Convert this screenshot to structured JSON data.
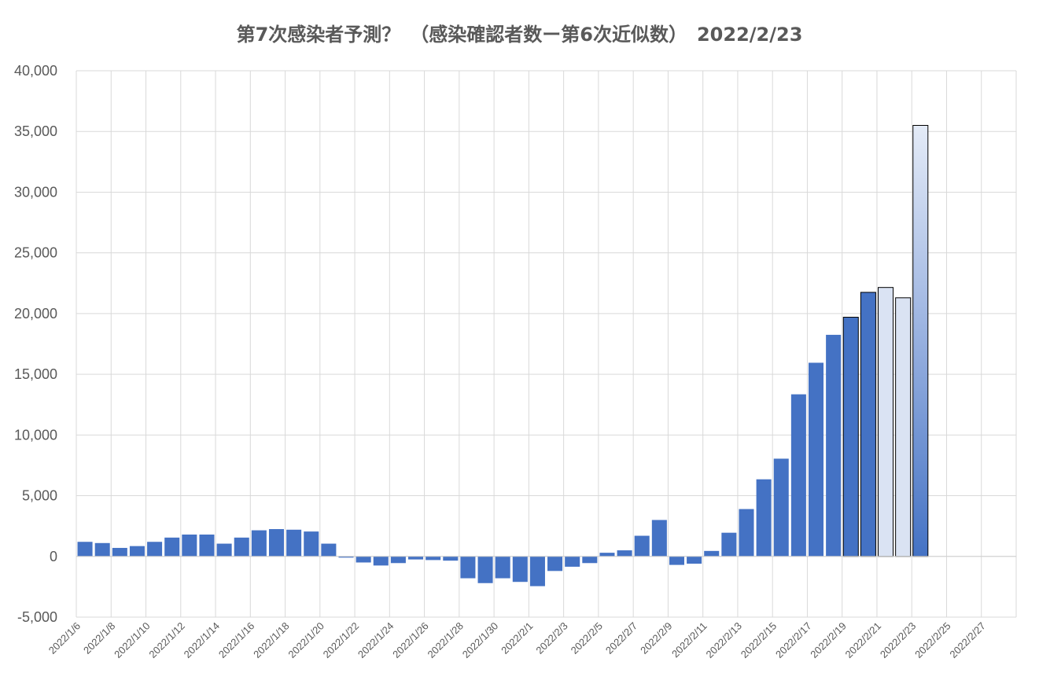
{
  "chart_data": {
    "type": "bar",
    "title": "第7次感染者予測？　（感染確認者数ー第6次近似数）　2022/2/23",
    "xlabel": "",
    "ylabel": "",
    "ylim": [
      -5000,
      40000
    ],
    "yticks": [
      -5000,
      0,
      5000,
      10000,
      15000,
      20000,
      25000,
      30000,
      35000,
      40000
    ],
    "ytick_labels": [
      "-5,000",
      "0",
      "5,000",
      "10,000",
      "15,000",
      "20,000",
      "25,000",
      "30,000",
      "35,000",
      "40,000"
    ],
    "grid": true,
    "legend": "none",
    "xtick_labels": [
      "2022/1/6",
      "2022/1/8",
      "2022/1/10",
      "2022/1/12",
      "2022/1/14",
      "2022/1/16",
      "2022/1/18",
      "2022/1/20",
      "2022/1/22",
      "2022/1/24",
      "2022/1/26",
      "2022/1/28",
      "2022/1/30",
      "2022/2/1",
      "2022/2/3",
      "2022/2/5",
      "2022/2/7",
      "2022/2/9",
      "2022/2/11",
      "2022/2/13",
      "2022/2/15",
      "2022/2/17",
      "2022/2/19",
      "2022/2/21",
      "2022/2/23",
      "2022/2/25",
      "2022/2/27"
    ],
    "categories": [
      "2022/1/6",
      "2022/1/7",
      "2022/1/8",
      "2022/1/9",
      "2022/1/10",
      "2022/1/11",
      "2022/1/12",
      "2022/1/13",
      "2022/1/14",
      "2022/1/15",
      "2022/1/16",
      "2022/1/17",
      "2022/1/18",
      "2022/1/19",
      "2022/1/20",
      "2022/1/21",
      "2022/1/22",
      "2022/1/23",
      "2022/1/24",
      "2022/1/25",
      "2022/1/26",
      "2022/1/27",
      "2022/1/28",
      "2022/1/29",
      "2022/1/30",
      "2022/1/31",
      "2022/2/1",
      "2022/2/2",
      "2022/2/3",
      "2022/2/4",
      "2022/2/5",
      "2022/2/6",
      "2022/2/7",
      "2022/2/8",
      "2022/2/9",
      "2022/2/10",
      "2022/2/11",
      "2022/2/12",
      "2022/2/13",
      "2022/2/14",
      "2022/2/15",
      "2022/2/16",
      "2022/2/17",
      "2022/2/18",
      "2022/2/19",
      "2022/2/20",
      "2022/2/21",
      "2022/2/22",
      "2022/2/23",
      "2022/2/24",
      "2022/2/25",
      "2022/2/26",
      "2022/2/27",
      "2022/2/28"
    ],
    "values": [
      1200,
      1100,
      700,
      850,
      1200,
      1550,
      1800,
      1800,
      1050,
      1550,
      2150,
      2250,
      2200,
      2050,
      1050,
      -100,
      -500,
      -750,
      -550,
      -250,
      -300,
      -350,
      -1800,
      -2200,
      -1800,
      -2100,
      -2450,
      -1200,
      -850,
      -550,
      300,
      500,
      1700,
      3000,
      -700,
      -600,
      450,
      1950,
      3900,
      6350,
      8050,
      13350,
      15950,
      18250,
      19700,
      21750,
      22150,
      21300,
      35500,
      null,
      null,
      null,
      null,
      null
    ],
    "bar_styles": [
      "solid",
      "solid",
      "solid",
      "solid",
      "solid",
      "solid",
      "solid",
      "solid",
      "solid",
      "solid",
      "solid",
      "solid",
      "solid",
      "solid",
      "solid",
      "solid",
      "solid",
      "solid",
      "solid",
      "solid",
      "solid",
      "solid",
      "solid",
      "solid",
      "solid",
      "solid",
      "solid",
      "solid",
      "solid",
      "solid",
      "solid",
      "solid",
      "solid",
      "solid",
      "solid",
      "solid",
      "solid",
      "solid",
      "solid",
      "solid",
      "solid",
      "solid",
      "solid",
      "solid",
      "outlined",
      "outlined",
      "pale",
      "outlined-pale",
      "gradient",
      null,
      null,
      null,
      null,
      null
    ],
    "colors": {
      "bar": "#4472C4",
      "pale": "#DAE3F3",
      "outline": "#000000",
      "grid": "#D9D9D9",
      "text": "#595959"
    }
  }
}
